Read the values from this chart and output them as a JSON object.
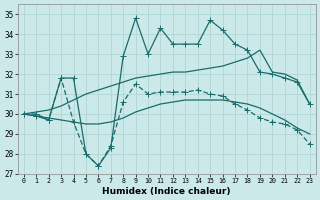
{
  "xlabel": "Humidex (Indice chaleur)",
  "xlim": [
    -0.5,
    23.5
  ],
  "ylim": [
    27,
    35.5
  ],
  "yticks": [
    27,
    28,
    29,
    30,
    31,
    32,
    33,
    34,
    35
  ],
  "xticks": [
    0,
    1,
    2,
    3,
    4,
    5,
    6,
    7,
    8,
    9,
    10,
    11,
    12,
    13,
    14,
    15,
    16,
    17,
    18,
    19,
    20,
    21,
    22,
    23
  ],
  "background_color": "#cce9e9",
  "grid_color": "#b0d5d5",
  "line_color": "#1a6b6b",
  "line1_marked": [
    30.0,
    29.9,
    29.7,
    31.8,
    31.8,
    28.0,
    27.4,
    28.3,
    32.9,
    34.8,
    33.0,
    34.3,
    33.5,
    33.5,
    33.5,
    34.7,
    34.2,
    33.5,
    33.2,
    32.1,
    32.0,
    31.8,
    31.6,
    30.5
  ],
  "line2_smooth_high": [
    30.0,
    30.1,
    30.2,
    30.4,
    30.7,
    31.0,
    31.2,
    31.4,
    31.6,
    31.8,
    31.9,
    32.0,
    32.1,
    32.1,
    32.2,
    32.3,
    32.4,
    32.6,
    32.8,
    33.2,
    32.1,
    32.0,
    31.7,
    30.5
  ],
  "line3_smooth_low": [
    30.0,
    29.9,
    29.8,
    29.7,
    29.6,
    29.5,
    29.5,
    29.6,
    29.8,
    30.1,
    30.3,
    30.5,
    30.6,
    30.7,
    30.7,
    30.7,
    30.7,
    30.6,
    30.5,
    30.3,
    30.0,
    29.7,
    29.3,
    29.0
  ],
  "line4_marked_low": [
    30.0,
    30.0,
    29.7,
    31.8,
    29.6,
    28.0,
    27.4,
    28.4,
    30.6,
    31.5,
    31.0,
    31.1,
    31.1,
    31.1,
    31.2,
    31.0,
    30.9,
    30.5,
    30.2,
    29.8,
    29.6,
    29.5,
    29.2,
    28.5
  ],
  "line_width": 0.9,
  "marker_size": 3.0
}
